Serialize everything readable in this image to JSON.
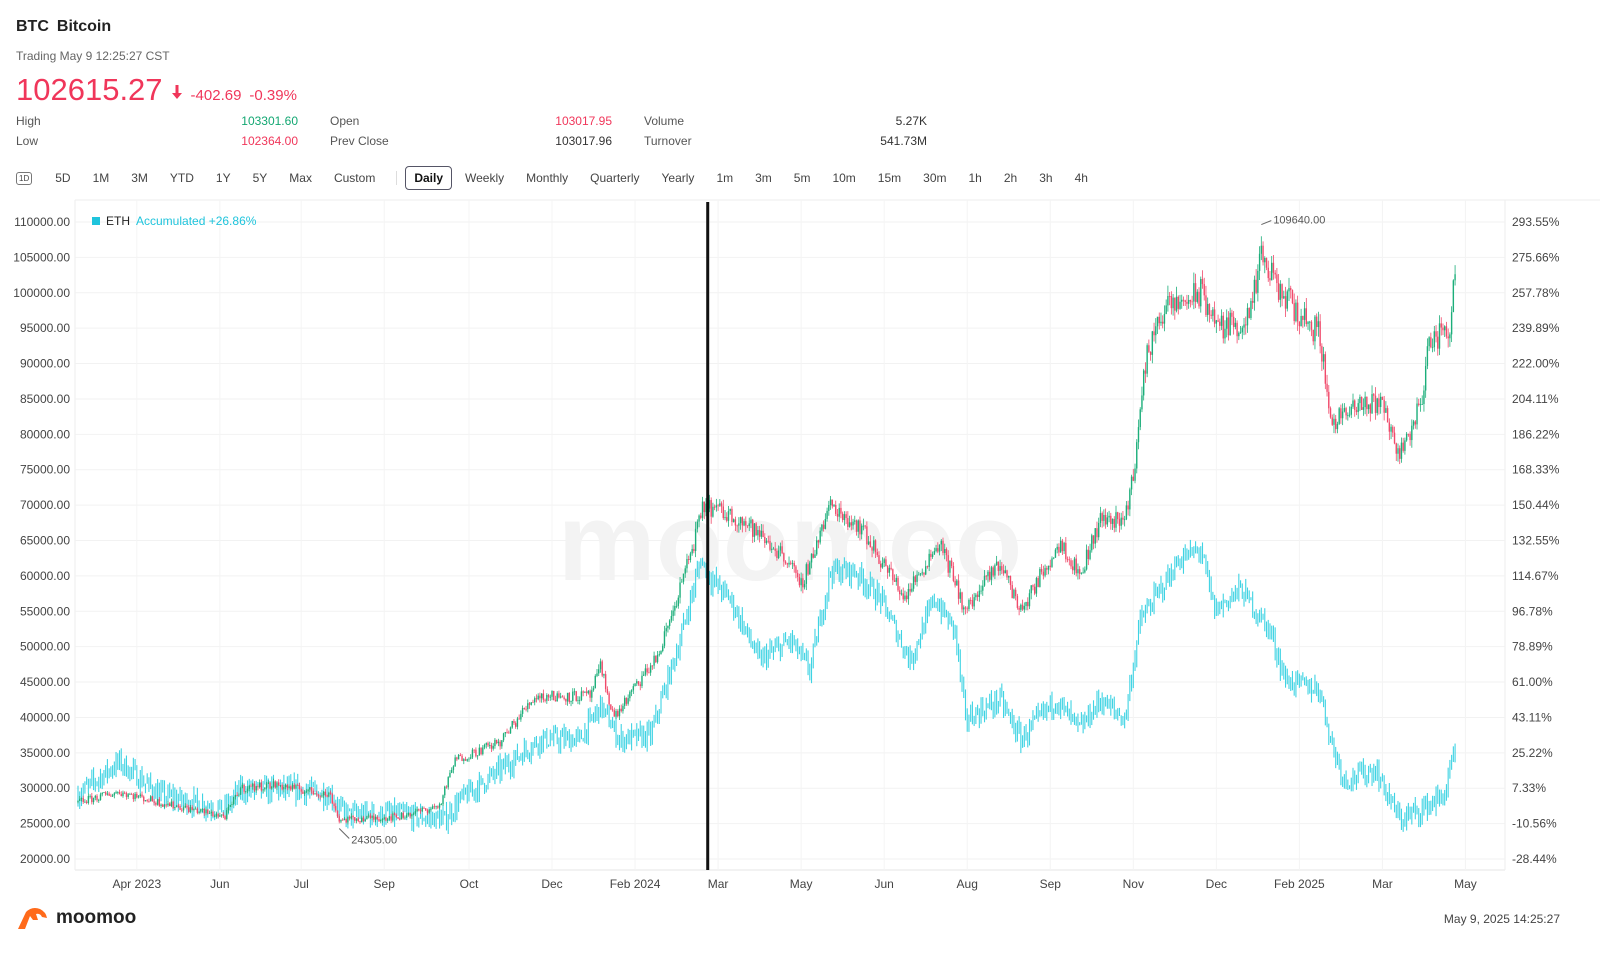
{
  "header": {
    "symbol": "BTC",
    "name": "Bitcoin",
    "status": "Trading May 9 12:25:27 CST",
    "price": "102615.27",
    "change": "-402.69",
    "change_pct": "-0.39%"
  },
  "stats": [
    {
      "label": "High",
      "value": "103301.60",
      "color": "g"
    },
    {
      "label": "Low",
      "value": "102364.00",
      "color": "r"
    },
    {
      "label": "Open",
      "value": "103017.95",
      "color": "r"
    },
    {
      "label": "Prev Close",
      "value": "103017.96",
      "color": ""
    },
    {
      "label": "Volume",
      "value": "5.27K",
      "color": ""
    },
    {
      "label": "Turnover",
      "value": "541.73M",
      "color": ""
    }
  ],
  "tabs": {
    "oneD": "1D",
    "ranges": [
      "5D",
      "1M",
      "3M",
      "YTD",
      "1Y",
      "5Y",
      "Max",
      "Custom"
    ],
    "periods": [
      "Daily",
      "Weekly",
      "Monthly",
      "Quarterly",
      "Yearly",
      "1m",
      "3m",
      "5m",
      "10m",
      "15m",
      "30m",
      "1h",
      "2h",
      "3h",
      "4h"
    ],
    "active": "Daily"
  },
  "legend": {
    "name": "ETH",
    "text": "Accumulated +26.86%"
  },
  "footer": {
    "brand": "moomoo",
    "timestamp": "May 9, 2025 14:25:27"
  },
  "watermark": "moomoo",
  "colors": {
    "up": "#1cae7a",
    "down": "#f0496a",
    "eth": "#3fd3e3"
  },
  "chart_data": {
    "type": "candlestick",
    "title": "BTC Bitcoin Daily",
    "left_ylim": [
      20000,
      110000
    ],
    "left_ticks": [
      "110000.00",
      "105000.00",
      "100000.00",
      "95000.00",
      "90000.00",
      "85000.00",
      "80000.00",
      "75000.00",
      "70000.00",
      "65000.00",
      "60000.00",
      "55000.00",
      "50000.00",
      "45000.00",
      "40000.00",
      "35000.00",
      "30000.00",
      "25000.00",
      "20000.00"
    ],
    "right_ylim": [
      -28.44,
      293.55
    ],
    "right_ticks": [
      "293.55%",
      "275.66%",
      "257.78%",
      "239.89%",
      "222.00%",
      "204.11%",
      "186.22%",
      "168.33%",
      "150.44%",
      "132.55%",
      "114.67%",
      "96.78%",
      "78.89%",
      "61.00%",
      "43.11%",
      "25.22%",
      "7.33%",
      "-10.56%",
      "-28.44%"
    ],
    "x_bars": 797,
    "x_ticks": [
      [
        34,
        "Apr 2023"
      ],
      [
        82,
        "Jun"
      ],
      [
        129,
        "Jul"
      ],
      [
        177,
        "Sep"
      ],
      [
        226,
        "Oct"
      ],
      [
        274,
        "Dec"
      ],
      [
        322,
        "Feb 2024"
      ],
      [
        370,
        "Mar"
      ],
      [
        418,
        "May"
      ],
      [
        466,
        "Jun"
      ],
      [
        514,
        "Aug"
      ],
      [
        562,
        "Sep"
      ],
      [
        610,
        "Nov"
      ],
      [
        658,
        "Dec"
      ],
      [
        706,
        "Feb 2025"
      ],
      [
        754,
        "Mar"
      ],
      [
        802,
        "May"
      ]
    ],
    "crosshair_bar": 364,
    "btc_keypoints": [
      [
        0,
        28000
      ],
      [
        24,
        29500
      ],
      [
        47,
        28000
      ],
      [
        85,
        26000
      ],
      [
        94,
        30000
      ],
      [
        114,
        30500
      ],
      [
        146,
        29000
      ],
      [
        151,
        25500
      ],
      [
        186,
        26000
      ],
      [
        209,
        27500
      ],
      [
        218,
        34000
      ],
      [
        244,
        36500
      ],
      [
        264,
        43000
      ],
      [
        296,
        43000
      ],
      [
        302,
        47000
      ],
      [
        310,
        40000
      ],
      [
        336,
        49000
      ],
      [
        354,
        63000
      ],
      [
        362,
        70000
      ],
      [
        383,
        68000
      ],
      [
        412,
        62000
      ],
      [
        417,
        58000
      ],
      [
        435,
        70000
      ],
      [
        452,
        67000
      ],
      [
        478,
        57000
      ],
      [
        498,
        65000
      ],
      [
        513,
        55000
      ],
      [
        533,
        62000
      ],
      [
        545,
        55000
      ],
      [
        568,
        65000
      ],
      [
        579,
        60000
      ],
      [
        591,
        68000
      ],
      [
        605,
        68000
      ],
      [
        611,
        76000
      ],
      [
        617,
        90000
      ],
      [
        625,
        97000
      ],
      [
        649,
        100000
      ],
      [
        660,
        95000
      ],
      [
        677,
        96000
      ],
      [
        684,
        105000
      ],
      [
        695,
        100000
      ],
      [
        718,
        94000
      ],
      [
        724,
        82000
      ],
      [
        735,
        83000
      ],
      [
        753,
        85000
      ],
      [
        764,
        77000
      ],
      [
        776,
        84000
      ],
      [
        781,
        93000
      ],
      [
        793,
        95000
      ],
      [
        796,
        102615.27
      ]
    ],
    "eth_accumulated_pct_keypoints": [
      [
        0,
        4
      ],
      [
        24,
        20.6
      ],
      [
        47,
        4
      ],
      [
        85,
        -3.6
      ],
      [
        94,
        6.5
      ],
      [
        128,
        6.5
      ],
      [
        146,
        4
      ],
      [
        154,
        -6
      ],
      [
        186,
        -6
      ],
      [
        212,
        -8.6
      ],
      [
        221,
        1.5
      ],
      [
        244,
        16.6
      ],
      [
        267,
        32
      ],
      [
        290,
        32
      ],
      [
        302,
        49
      ],
      [
        313,
        32
      ],
      [
        331,
        34
      ],
      [
        348,
        82
      ],
      [
        360,
        123
      ],
      [
        366,
        113
      ],
      [
        377,
        103
      ],
      [
        394,
        72
      ],
      [
        412,
        82
      ],
      [
        423,
        67
      ],
      [
        435,
        117
      ],
      [
        449,
        117
      ],
      [
        464,
        103
      ],
      [
        481,
        72
      ],
      [
        495,
        103
      ],
      [
        507,
        87
      ],
      [
        513,
        42
      ],
      [
        533,
        52
      ],
      [
        545,
        32
      ],
      [
        565,
        52
      ],
      [
        579,
        37
      ],
      [
        591,
        52
      ],
      [
        605,
        42
      ],
      [
        614,
        92
      ],
      [
        637,
        123
      ],
      [
        649,
        128
      ],
      [
        657,
        97
      ],
      [
        672,
        108
      ],
      [
        689,
        87
      ],
      [
        698,
        62
      ],
      [
        718,
        57
      ],
      [
        724,
        32
      ],
      [
        732,
        11.5
      ],
      [
        750,
        16.6
      ],
      [
        764,
        -8.6
      ],
      [
        776,
        -3.6
      ],
      [
        790,
        4
      ],
      [
        796,
        26.86
      ]
    ],
    "annotations": [
      {
        "bar": 684,
        "value": "109640.00",
        "type": "high"
      },
      {
        "bar": 151,
        "value": "24305.00",
        "type": "low"
      }
    ]
  }
}
